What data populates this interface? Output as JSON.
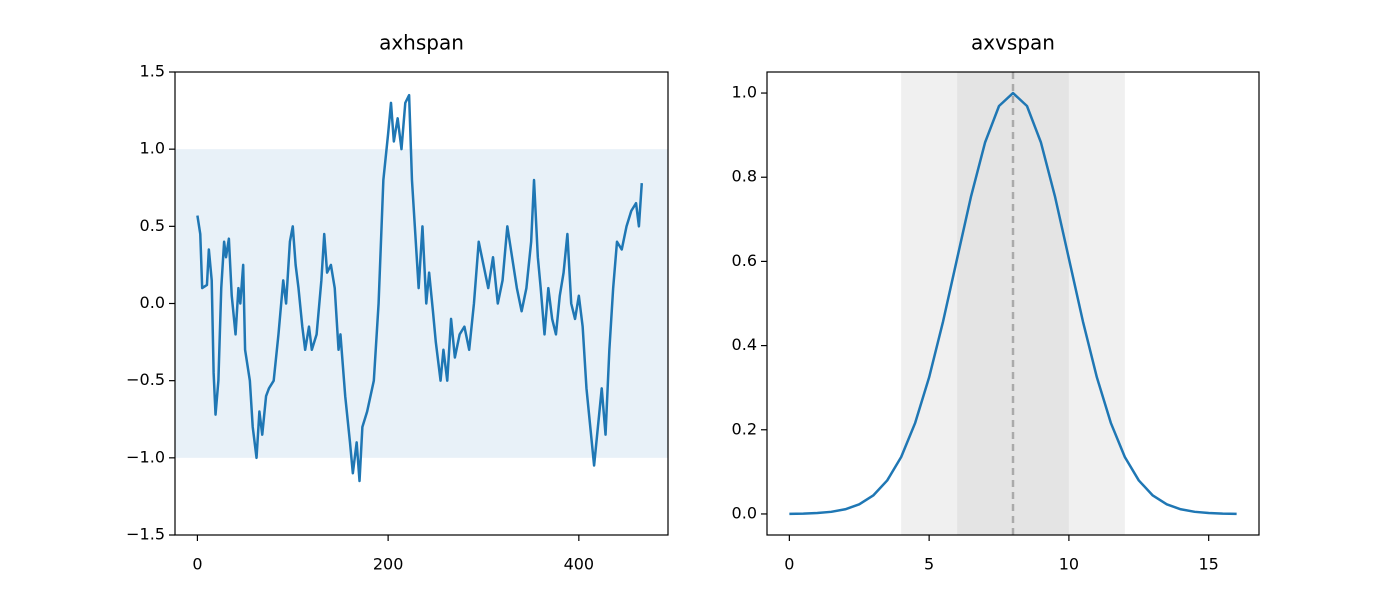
{
  "chart_data": [
    {
      "type": "line",
      "title": "axhspan",
      "x": [
        0,
        3,
        5,
        10,
        12,
        15,
        17,
        19,
        22,
        25,
        28,
        30,
        33,
        36,
        40,
        43,
        45,
        48,
        50,
        55,
        58,
        62,
        65,
        68,
        72,
        75,
        80,
        85,
        90,
        93,
        97,
        100,
        103,
        106,
        110,
        113,
        117,
        120,
        125,
        130,
        133,
        136,
        140,
        144,
        148,
        150,
        155,
        160,
        163,
        167,
        170,
        173,
        178,
        185,
        190,
        195,
        200,
        203,
        206,
        210,
        214,
        218,
        222,
        225,
        228,
        232,
        236,
        240,
        243,
        247,
        250,
        255,
        258,
        262,
        266,
        270,
        275,
        280,
        285,
        290,
        295,
        300,
        305,
        310,
        315,
        320,
        325,
        330,
        335,
        340,
        345,
        350,
        353,
        357,
        360,
        364,
        368,
        372,
        376,
        380,
        384,
        388,
        392,
        396,
        400,
        404,
        408,
        412,
        416,
        420,
        424,
        428,
        432,
        436,
        440,
        445,
        450,
        455,
        460,
        463,
        466
      ],
      "values": [
        0.57,
        0.45,
        0.1,
        0.12,
        0.35,
        0.15,
        -0.45,
        -0.72,
        -0.5,
        0.1,
        0.4,
        0.3,
        0.42,
        0.05,
        -0.2,
        0.1,
        0.0,
        0.25,
        -0.3,
        -0.5,
        -0.8,
        -1.0,
        -0.7,
        -0.85,
        -0.6,
        -0.55,
        -0.5,
        -0.2,
        0.15,
        0.0,
        0.4,
        0.5,
        0.25,
        0.1,
        -0.15,
        -0.3,
        -0.15,
        -0.3,
        -0.2,
        0.15,
        0.45,
        0.2,
        0.25,
        0.1,
        -0.3,
        -0.2,
        -0.6,
        -0.9,
        -1.1,
        -0.9,
        -1.15,
        -0.8,
        -0.7,
        -0.5,
        0.0,
        0.8,
        1.1,
        1.3,
        1.05,
        1.2,
        1.0,
        1.3,
        1.35,
        0.8,
        0.5,
        0.1,
        0.5,
        0.0,
        0.2,
        -0.05,
        -0.25,
        -0.5,
        -0.3,
        -0.5,
        -0.1,
        -0.35,
        -0.2,
        -0.15,
        -0.3,
        0.0,
        0.4,
        0.25,
        0.1,
        0.3,
        0.0,
        0.15,
        0.5,
        0.3,
        0.1,
        -0.05,
        0.1,
        0.4,
        0.8,
        0.3,
        0.1,
        -0.2,
        0.1,
        -0.1,
        -0.2,
        0.05,
        0.2,
        0.45,
        0.0,
        -0.1,
        0.05,
        -0.15,
        -0.55,
        -0.8,
        -1.05,
        -0.8,
        -0.55,
        -0.85,
        -0.3,
        0.1,
        0.4,
        0.35,
        0.5,
        0.6,
        0.65,
        0.5,
        0.78
      ],
      "color": "#1f77b4",
      "hspan": {
        "ymin": -1,
        "ymax": 1,
        "color": "#e8f1f8"
      },
      "xlim": [
        -23.5,
        493.5
      ],
      "xticks": [
        0,
        200,
        400
      ],
      "ylim": [
        -1.5,
        1.5
      ],
      "yticks": [
        {
          "value": -1.5,
          "label": "−1.5"
        },
        {
          "value": -1,
          "label": "−1.0"
        },
        {
          "value": -0.5,
          "label": "−0.5"
        },
        {
          "value": 0,
          "label": "0.0"
        },
        0.5,
        {
          "value": 1,
          "label": "1.0"
        },
        1.5
      ]
    },
    {
      "type": "line",
      "title": "axvspan",
      "x": [
        0,
        0.5,
        1,
        1.5,
        2,
        2.5,
        3,
        3.5,
        4,
        4.5,
        5,
        5.5,
        6,
        6.5,
        7,
        7.5,
        8,
        8.5,
        9,
        9.5,
        10,
        10.5,
        11,
        11.5,
        12,
        12.5,
        13,
        13.5,
        14,
        14.5,
        15,
        15.5,
        16
      ],
      "values": [
        0.000335,
        0.00088,
        0.00219,
        0.0051,
        0.0111,
        0.0228,
        0.0439,
        0.0796,
        0.1353,
        0.2163,
        0.3247,
        0.4578,
        0.6065,
        0.7548,
        0.8825,
        0.9692,
        1,
        0.9692,
        0.8825,
        0.7548,
        0.6065,
        0.4578,
        0.3247,
        0.2163,
        0.1353,
        0.0796,
        0.0439,
        0.0228,
        0.0111,
        0.0051,
        0.00219,
        0.00088,
        0.000335
      ],
      "color": "#1f77b4",
      "vspans": [
        {
          "xmin": 4,
          "xmax": 12,
          "color": "#f0f0f0"
        },
        {
          "xmin": 6,
          "xmax": 10,
          "color": "#e4e4e4"
        }
      ],
      "vline": {
        "x": 8,
        "color": "#aaaaaa",
        "dashed": true
      },
      "xlim": [
        -0.8,
        16.8
      ],
      "xticks": [
        0,
        5,
        10,
        15
      ],
      "ylim": [
        -0.05,
        1.05
      ],
      "yticks": [
        {
          "value": 0,
          "label": "0.0"
        },
        0.2,
        0.4,
        0.6,
        0.8,
        {
          "value": 1,
          "label": "1.0"
        }
      ]
    }
  ]
}
